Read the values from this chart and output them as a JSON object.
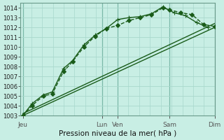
{
  "title": "Pression niveau de la mer( hPa )",
  "bg_color": "#c8eee4",
  "grid_color": "#a8d8cc",
  "line_color": "#1a5c1a",
  "ylim": [
    1003,
    1014.5
  ],
  "yticks": [
    1003,
    1004,
    1005,
    1006,
    1007,
    1008,
    1009,
    1010,
    1011,
    1012,
    1013,
    1014
  ],
  "xlim": [
    -0.1,
    8.5
  ],
  "x_tick_positions": [
    0,
    3.5,
    4.2,
    6.5,
    8.5
  ],
  "x_tick_labels": [
    "Jeu",
    "Lun",
    "Ven",
    "Sam",
    "Dim"
  ],
  "x_vline_positions": [
    0,
    3.5,
    4.2,
    6.5,
    8.5
  ],
  "lines": [
    {
      "x": [
        0,
        0.4,
        0.9,
        1.3,
        1.8,
        2.2,
        2.7,
        3.2,
        3.7,
        4.2,
        4.7,
        5.2,
        5.7,
        6.2,
        6.5,
        7.0,
        7.5,
        8.0,
        8.5
      ],
      "y": [
        1003.0,
        1004.0,
        1005.0,
        1005.2,
        1007.5,
        1008.5,
        1010.0,
        1011.1,
        1011.9,
        1012.2,
        1012.7,
        1013.0,
        1013.3,
        1014.0,
        1013.8,
        1013.5,
        1013.3,
        1012.3,
        1012.1
      ],
      "marker": "D",
      "markersize": 3,
      "lw": 1.0,
      "linestyle": "--"
    },
    {
      "x": [
        0,
        0.4,
        0.9,
        1.3,
        1.8,
        2.2,
        2.7,
        3.2,
        3.7,
        4.2,
        4.7,
        5.2,
        5.7,
        6.2,
        6.7,
        7.2,
        7.7,
        8.2
      ],
      "y": [
        1003.0,
        1004.2,
        1005.1,
        1005.4,
        1007.8,
        1008.6,
        1010.2,
        1011.2,
        1011.9,
        1012.8,
        1013.0,
        1013.1,
        1013.4,
        1014.1,
        1013.5,
        1013.2,
        1012.5,
        1012.0
      ],
      "marker": "+",
      "markersize": 4,
      "lw": 1.0,
      "linestyle": "-"
    },
    {
      "x": [
        0,
        8.5
      ],
      "y": [
        1003.0,
        1012.0
      ],
      "marker": null,
      "markersize": 0,
      "lw": 1.0,
      "linestyle": "-"
    },
    {
      "x": [
        0,
        8.5
      ],
      "y": [
        1003.2,
        1012.4
      ],
      "marker": null,
      "markersize": 0,
      "lw": 1.0,
      "linestyle": "-"
    }
  ]
}
